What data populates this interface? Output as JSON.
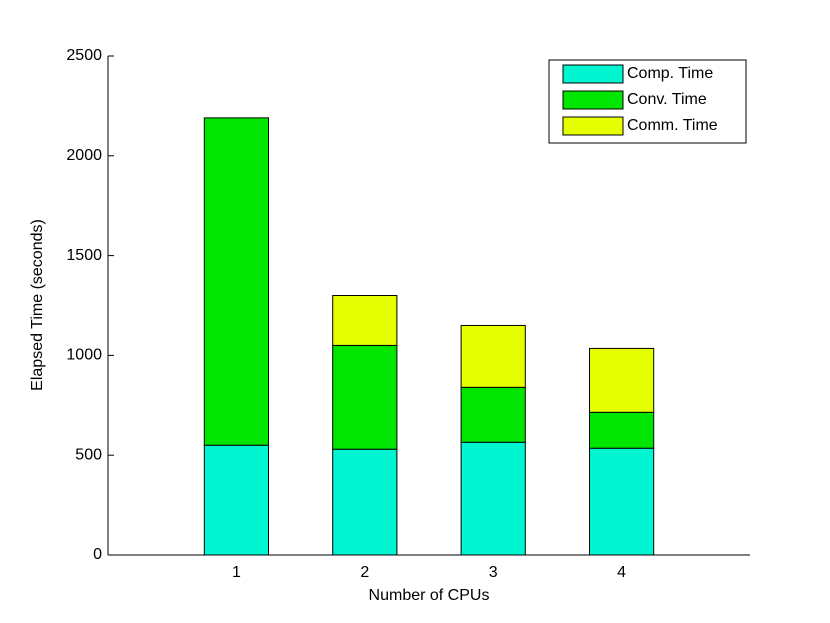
{
  "chart_data": {
    "type": "stacked_bar",
    "x_label": "Number of CPUs",
    "y_label": "Elapsed Time (seconds)",
    "x": [
      1,
      2,
      3,
      4
    ],
    "xlim": [
      0,
      5
    ],
    "xticks": [
      1,
      2,
      3,
      4
    ],
    "ylim": [
      0,
      2500
    ],
    "yticks": [
      0,
      500,
      1000,
      1500,
      2000,
      2500
    ],
    "legend": "top-right",
    "series": [
      {
        "name": "Comp. Time",
        "color": "#00f5d0",
        "values": [
          550,
          530,
          565,
          535
        ]
      },
      {
        "name": "Conv. Time",
        "color": "#00e600",
        "values": [
          1640,
          520,
          275,
          180
        ]
      },
      {
        "name": "Comm. Time",
        "color": "#e5ff00",
        "values": [
          0,
          250,
          310,
          320
        ]
      }
    ]
  }
}
